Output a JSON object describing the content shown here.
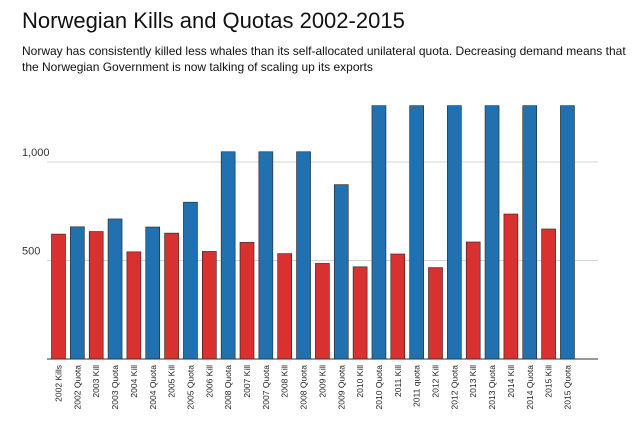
{
  "chart_data": {
    "type": "bar",
    "title": "Norwegian Kills and Quotas 2002-2015",
    "subtitle": "Norway has consistently killed less whales than its self-allocated unilateral quota. Decreasing demand means that the Norwegian Government is now talking of scaling up its exports",
    "xlabel": "",
    "ylabel": "",
    "ylim": [
      0,
      1300
    ],
    "yticks": [
      500,
      1000
    ],
    "ytick_labels": [
      "500",
      "1,000"
    ],
    "grid": true,
    "legend": "none",
    "colors": {
      "kill": "#d93030",
      "quota": "#2171b0"
    },
    "categories": [
      "2002 Kills",
      "2002 Quota",
      "2003 Kill",
      "2003 Quota",
      "2004 Kill",
      "2004 Quota",
      "2005 Kill",
      "2005 Quota",
      "2006 Kill",
      "2008 Quota",
      "2007 Kill",
      "2007 Quota",
      "2008 Kill",
      "2008 Quota",
      "2009 Kill",
      "2009 Quota",
      "2010 Kill",
      "2010 Quota",
      "2011 Kill",
      "2011 quota",
      "2012 Kill",
      "2012 Quota",
      "2013 Kill",
      "2013 Quota",
      "2014 Kill",
      "2014 Quota",
      "2015 Kill",
      "2015 Quota"
    ],
    "values": [
      634,
      671,
      647,
      711,
      544,
      670,
      639,
      796,
      546,
      1052,
      592,
      1052,
      535,
      1052,
      485,
      885,
      468,
      1286,
      533,
      1286,
      464,
      1286,
      594,
      1286,
      736,
      1286,
      660,
      1286
    ],
    "kinds": [
      "kill",
      "quota",
      "kill",
      "quota",
      "kill",
      "quota",
      "kill",
      "quota",
      "kill",
      "quota",
      "kill",
      "quota",
      "kill",
      "quota",
      "kill",
      "quota",
      "kill",
      "quota",
      "kill",
      "quota",
      "kill",
      "quota",
      "kill",
      "quota",
      "kill",
      "quota",
      "kill",
      "quota"
    ]
  }
}
